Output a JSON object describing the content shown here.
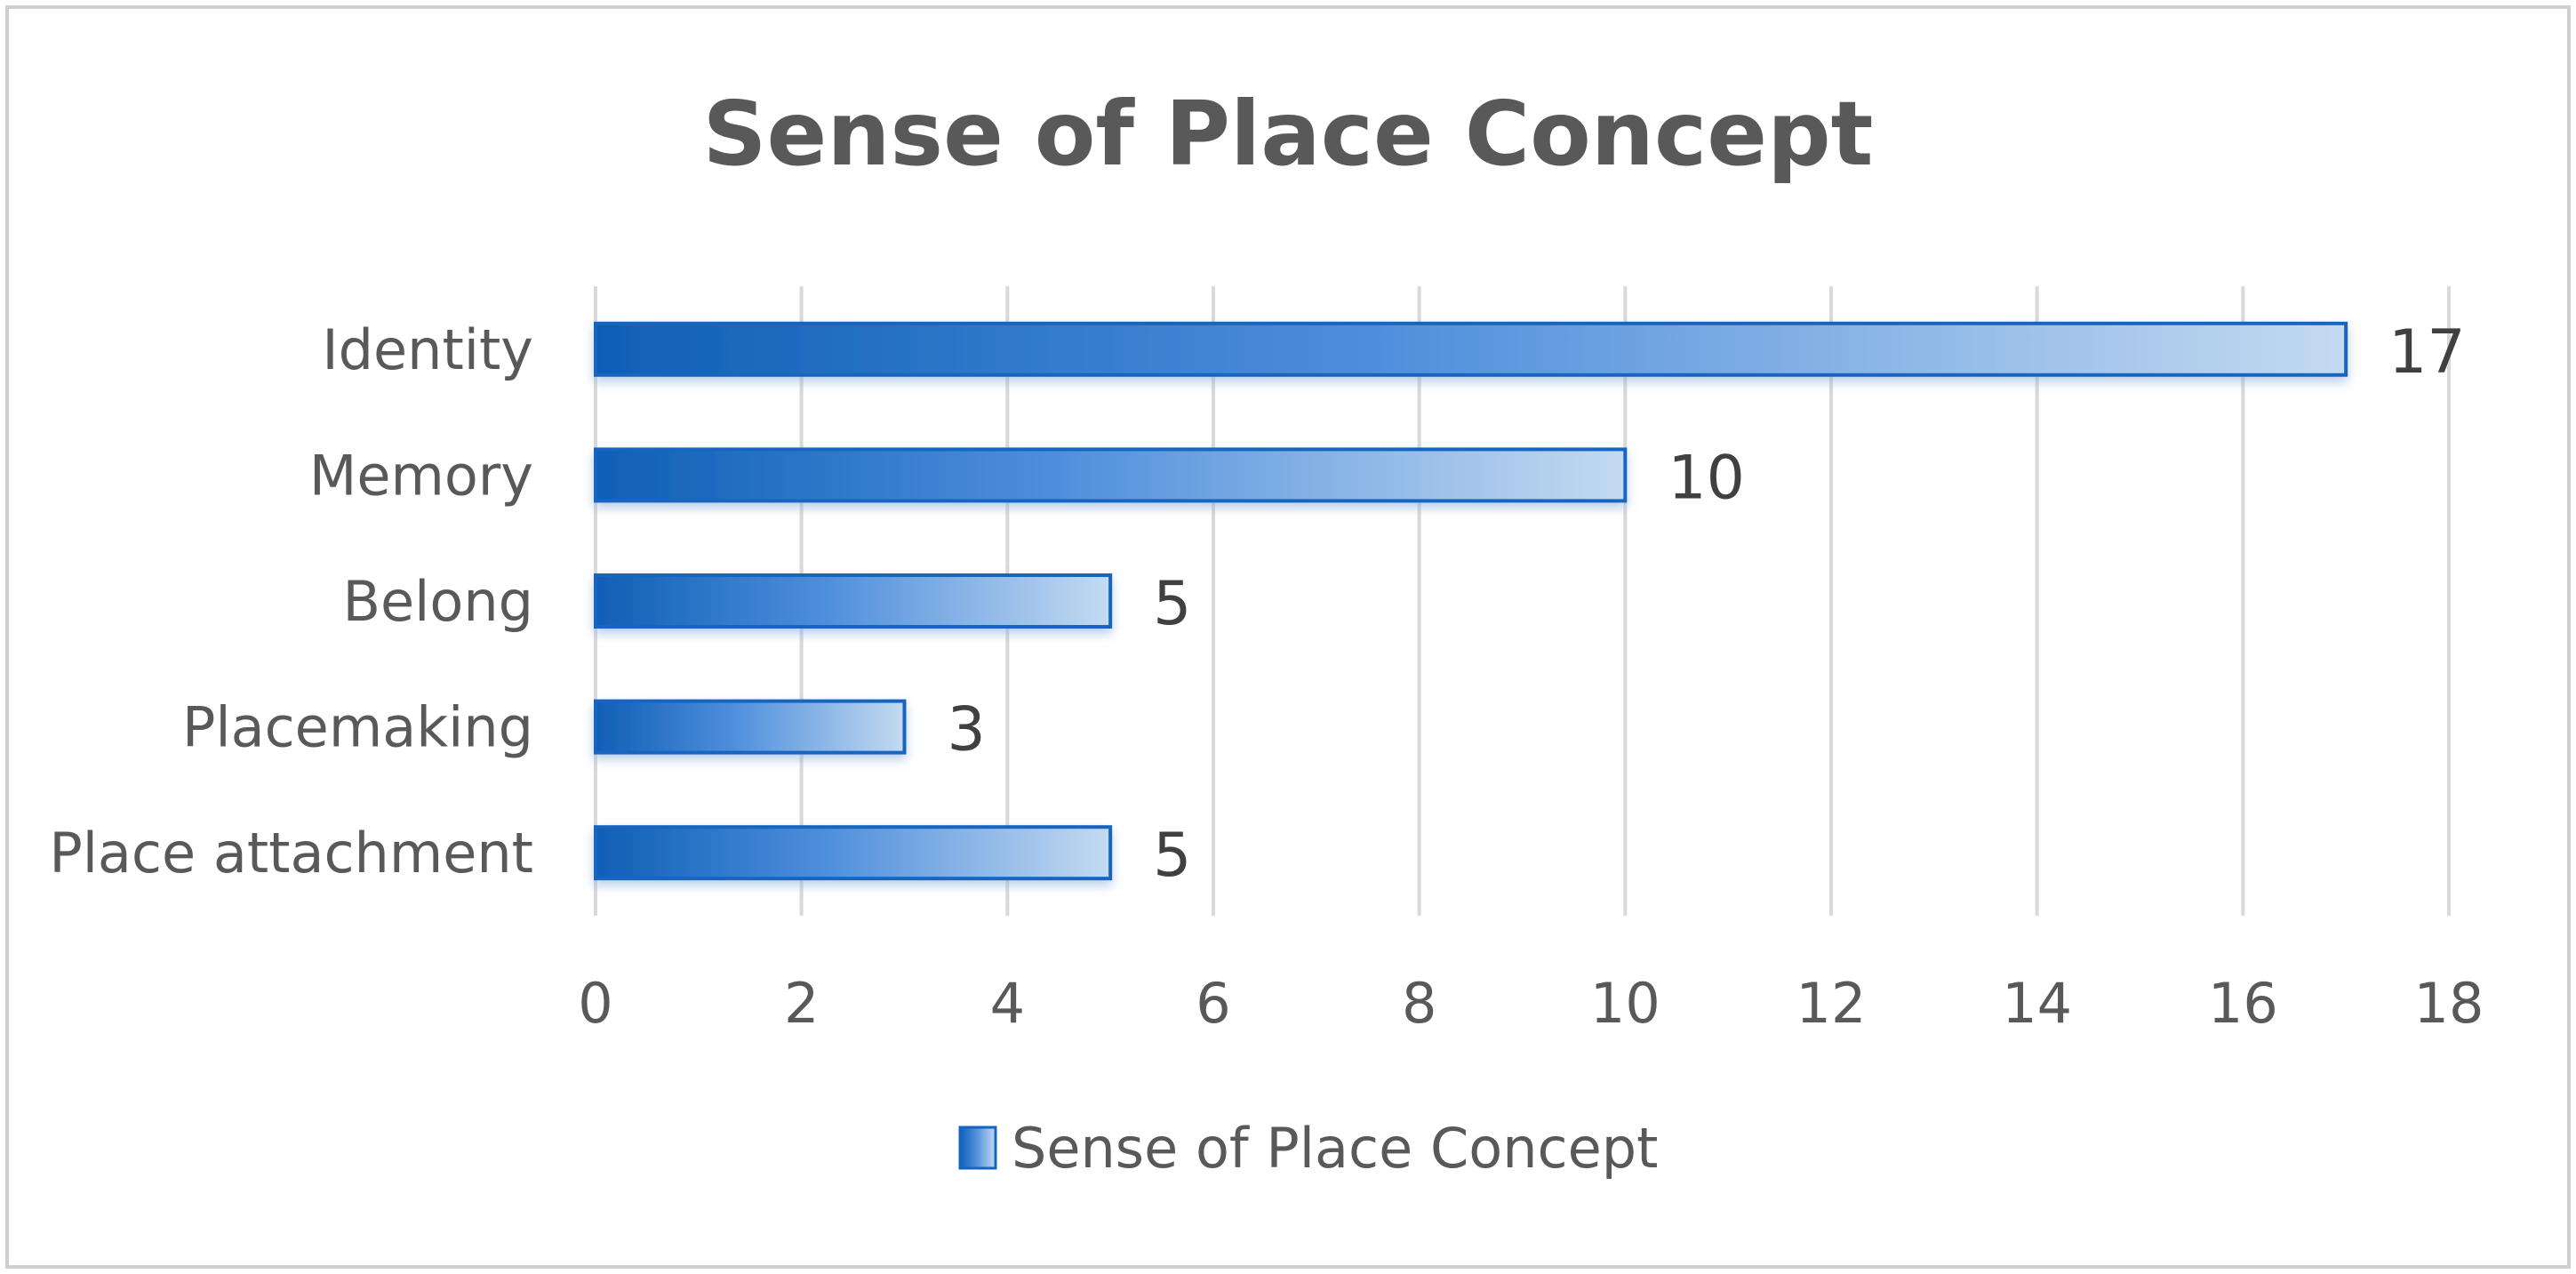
{
  "chart_data": {
    "type": "bar",
    "orientation": "horizontal",
    "title": "Sense of Place Concept",
    "categories": [
      "Identity",
      "Memory",
      "Belong",
      "Placemaking",
      "Place attachment"
    ],
    "series": [
      {
        "name": "Sense of Place Concept",
        "values": [
          17,
          10,
          5,
          3,
          5
        ]
      }
    ],
    "data_labels": [
      "17",
      "10",
      "5",
      "3",
      "5"
    ],
    "xlim": [
      0,
      18
    ],
    "x_ticks": [
      "0",
      "2",
      "4",
      "6",
      "8",
      "10",
      "12",
      "14",
      "16",
      "18"
    ],
    "grid": true,
    "legend_position": "bottom",
    "colors": {
      "bar_dark": "#0f5fb6",
      "bar_mid": "#2e7fd6",
      "bar_light": "#b9d2ee",
      "bar_border": "#1565c0",
      "grid": "#d9d9d9",
      "frame": "#d0d0d0"
    }
  }
}
